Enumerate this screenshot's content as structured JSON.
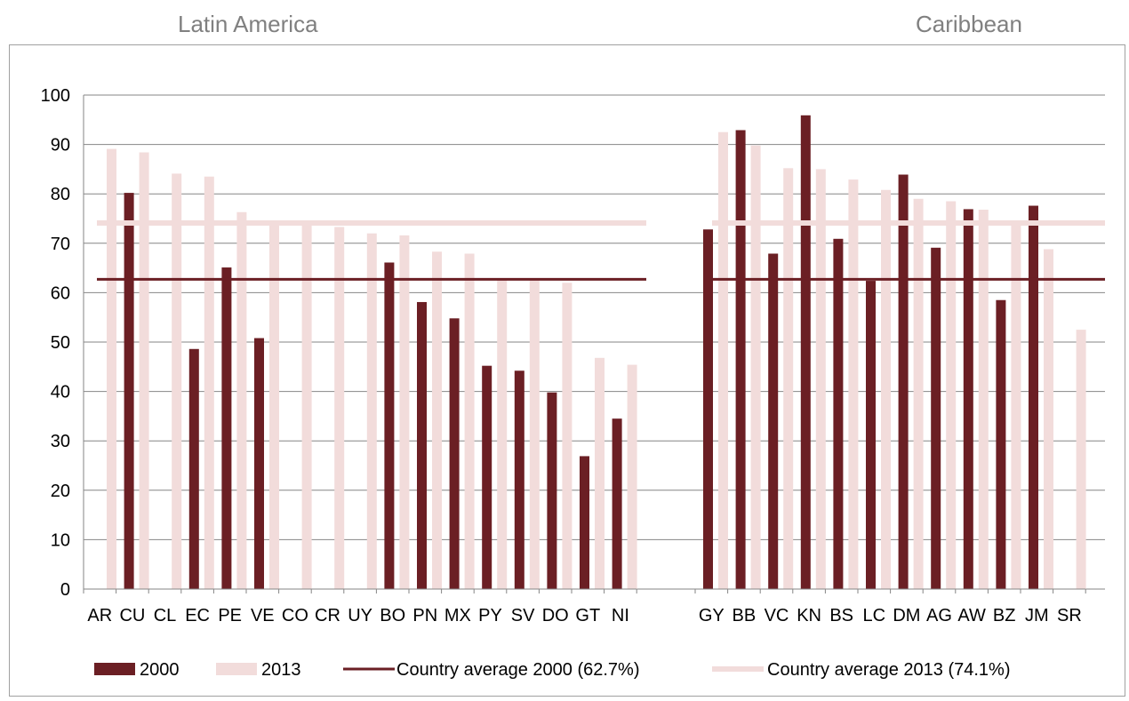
{
  "regions": {
    "left_title": "Latin America",
    "right_title": "Caribbean"
  },
  "colors": {
    "series_2000": "#6b1f24",
    "series_2013": "#f2dcdb",
    "grid": "#868686"
  },
  "chart_data": {
    "type": "bar",
    "ylim": [
      0,
      100
    ],
    "yticks": [
      0,
      10,
      20,
      30,
      40,
      50,
      60,
      70,
      80,
      90,
      100
    ],
    "grid": true,
    "legend_position": "bottom",
    "groups": [
      {
        "name": "Latin America",
        "categories": [
          "AR",
          "CU",
          "CL",
          "EC",
          "PE",
          "VE",
          "CO",
          "CR",
          "UY",
          "BO",
          "PN",
          "MX",
          "PY",
          "SV",
          "DO",
          "GT",
          "NI"
        ],
        "series": [
          {
            "name": "2000",
            "values": [
              null,
              80.2,
              null,
              48.6,
              65.1,
              50.8,
              null,
              null,
              null,
              66.1,
              58.1,
              54.8,
              45.2,
              44.2,
              39.8,
              26.9,
              34.5
            ]
          },
          {
            "name": "2013",
            "values": [
              89.1,
              88.4,
              84.1,
              83.5,
              76.3,
              74.6,
              74.1,
              73.3,
              72.0,
              71.6,
              68.3,
              67.9,
              62.7,
              62.6,
              62.0,
              46.8,
              45.4
            ]
          }
        ]
      },
      {
        "name": "Caribbean",
        "categories": [
          "GY",
          "BB",
          "VC",
          "KN",
          "BS",
          "LC",
          "DM",
          "AG",
          "AW",
          "BZ",
          "JM",
          "SR"
        ],
        "series": [
          {
            "name": "2000",
            "values": [
              72.8,
              92.9,
              67.9,
              95.9,
              70.9,
              62.4,
              83.9,
              69.1,
              76.9,
              58.5,
              77.6,
              null
            ]
          },
          {
            "name": "2013",
            "values": [
              92.5,
              89.8,
              85.2,
              85.0,
              82.9,
              80.8,
              79.0,
              78.5,
              76.8,
              74.0,
              68.8,
              52.5
            ]
          }
        ]
      }
    ],
    "reference_lines": [
      {
        "name": "Country average 2000 (62.7%)",
        "value": 62.7
      },
      {
        "name": "Country average 2013 (74.1%)",
        "value": 74.1
      }
    ],
    "legend": [
      "2000",
      "2013",
      "Country average 2000 (62.7%)",
      "Country average 2013 (74.1%)"
    ]
  }
}
